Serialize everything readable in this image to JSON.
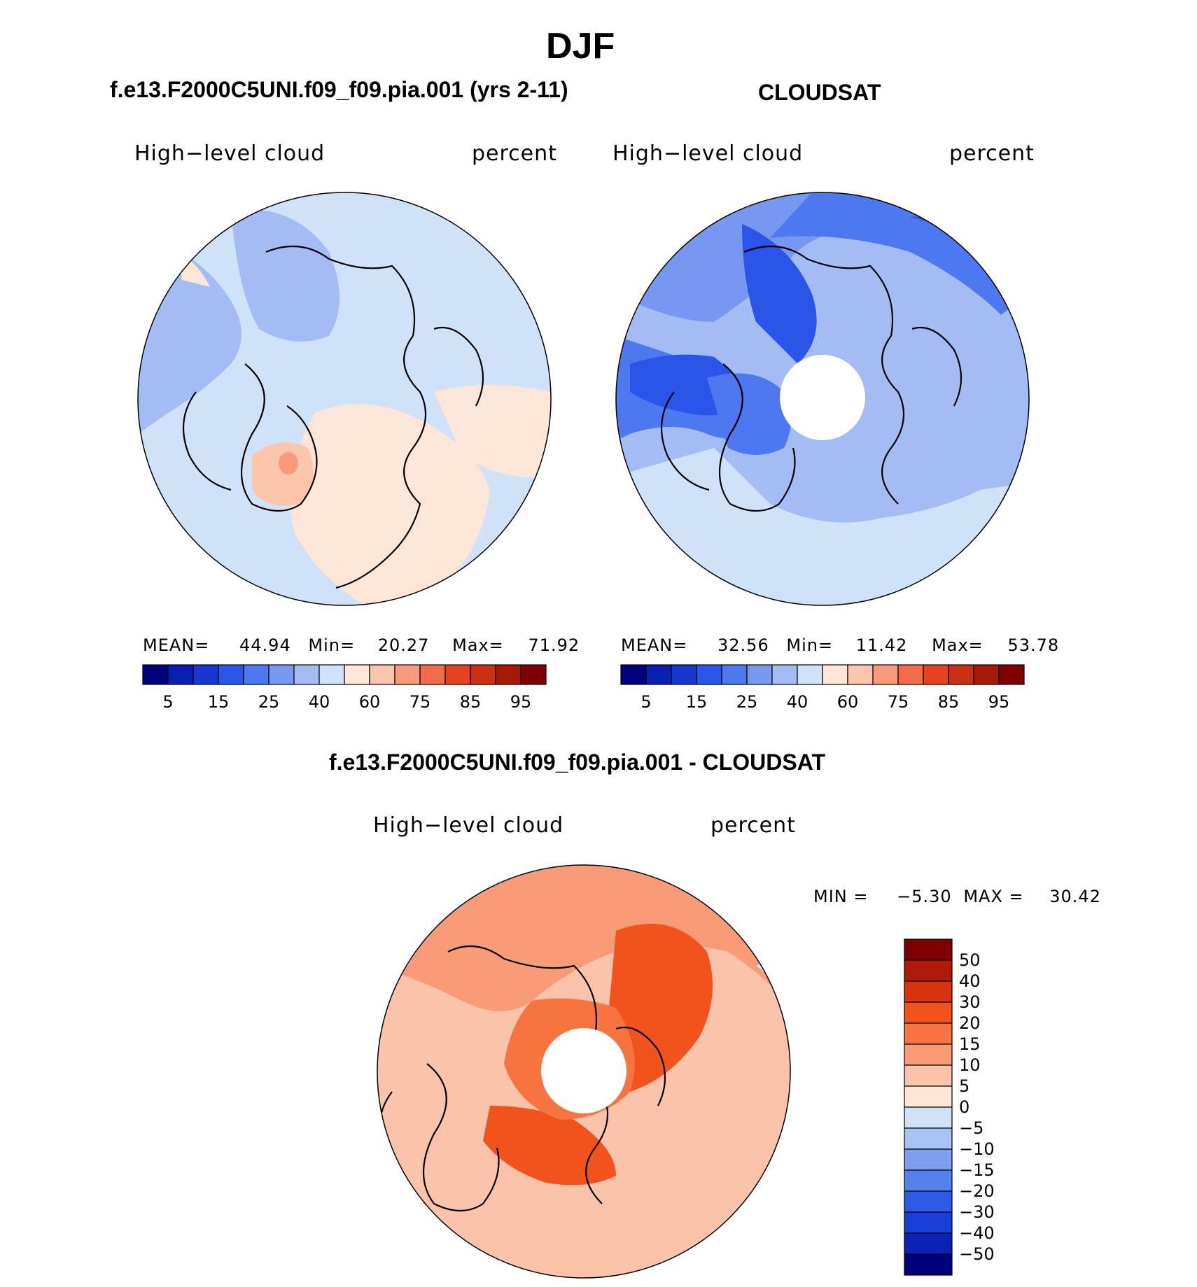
{
  "page": {
    "title": "DJF",
    "top_left_title": "f.e13.F2000C5UNI.f09_f09.pia.001 (yrs 2-11)",
    "top_right_title": "CLOUDSAT",
    "bottom_title": "f.e13.F2000C5UNI.f09_f09.pia.001 - CLOUDSAT"
  },
  "chart_data": [
    {
      "type": "heatmap",
      "projection": "north-polar-stereographic",
      "variable": "High−level cloud",
      "units": "percent",
      "stats": {
        "mean_label": "MEAN=",
        "mean": "44.94",
        "min_label": "Min=",
        "min": "20.27",
        "max_label": "Max=",
        "max": "71.92"
      },
      "colorbar": {
        "orientation": "horizontal",
        "tick_labels": [
          "5",
          "15",
          "25",
          "40",
          "60",
          "75",
          "85",
          "95"
        ],
        "colors": [
          "#00007f",
          "#0a1fb2",
          "#1838d4",
          "#2b55e8",
          "#4d78ef",
          "#7698f0",
          "#a3bdf4",
          "#d0e2f8",
          "#fde6d8",
          "#fbc5ac",
          "#f79b7c",
          "#f26b4b",
          "#e6421f",
          "#c92f10",
          "#a81a08",
          "#7f0000"
        ]
      },
      "field_description": "mostly 40-60 percent over ocean, 60-75 over Greenland and northern Eurasia",
      "missing_pole": false
    },
    {
      "type": "heatmap",
      "projection": "north-polar-stereographic",
      "variable": "High−level cloud",
      "units": "percent",
      "stats": {
        "mean_label": "MEAN=",
        "mean": "32.56",
        "min_label": "Min=",
        "min": "11.42",
        "max_label": "Max=",
        "max": "53.78"
      },
      "colorbar": {
        "orientation": "horizontal",
        "tick_labels": [
          "5",
          "15",
          "25",
          "40",
          "60",
          "75",
          "85",
          "95"
        ],
        "colors": [
          "#00007f",
          "#0a1fb2",
          "#1838d4",
          "#2b55e8",
          "#4d78ef",
          "#7698f0",
          "#a3bdf4",
          "#d0e2f8",
          "#fde6d8",
          "#fbc5ac",
          "#f79b7c",
          "#f26b4b",
          "#e6421f",
          "#c92f10",
          "#a81a08",
          "#7f0000"
        ]
      },
      "missing_pole": true
    },
    {
      "type": "heatmap",
      "projection": "north-polar-stereographic",
      "variable": "High−level cloud",
      "units": "percent",
      "stats": {
        "min_label": "MIN =",
        "min": "−5.30",
        "max_label": "MAX =",
        "max": "30.42"
      },
      "colorbar": {
        "orientation": "vertical",
        "tick_labels": [
          "50",
          "40",
          "30",
          "20",
          "15",
          "10",
          "5",
          "0",
          "−5",
          "−10",
          "−15",
          "−20",
          "−30",
          "−40",
          "−50"
        ],
        "colors": [
          "#7f0000",
          "#b01a06",
          "#d8340e",
          "#f2521c",
          "#f7733f",
          "#f99b77",
          "#fbc4aa",
          "#fde6d6",
          "#d0e2f8",
          "#a9c3f4",
          "#7d9ef1",
          "#5581ec",
          "#2d5ce6",
          "#1a3ed8",
          "#0c22b6",
          "#00007f"
        ]
      },
      "missing_pole": true
    }
  ]
}
